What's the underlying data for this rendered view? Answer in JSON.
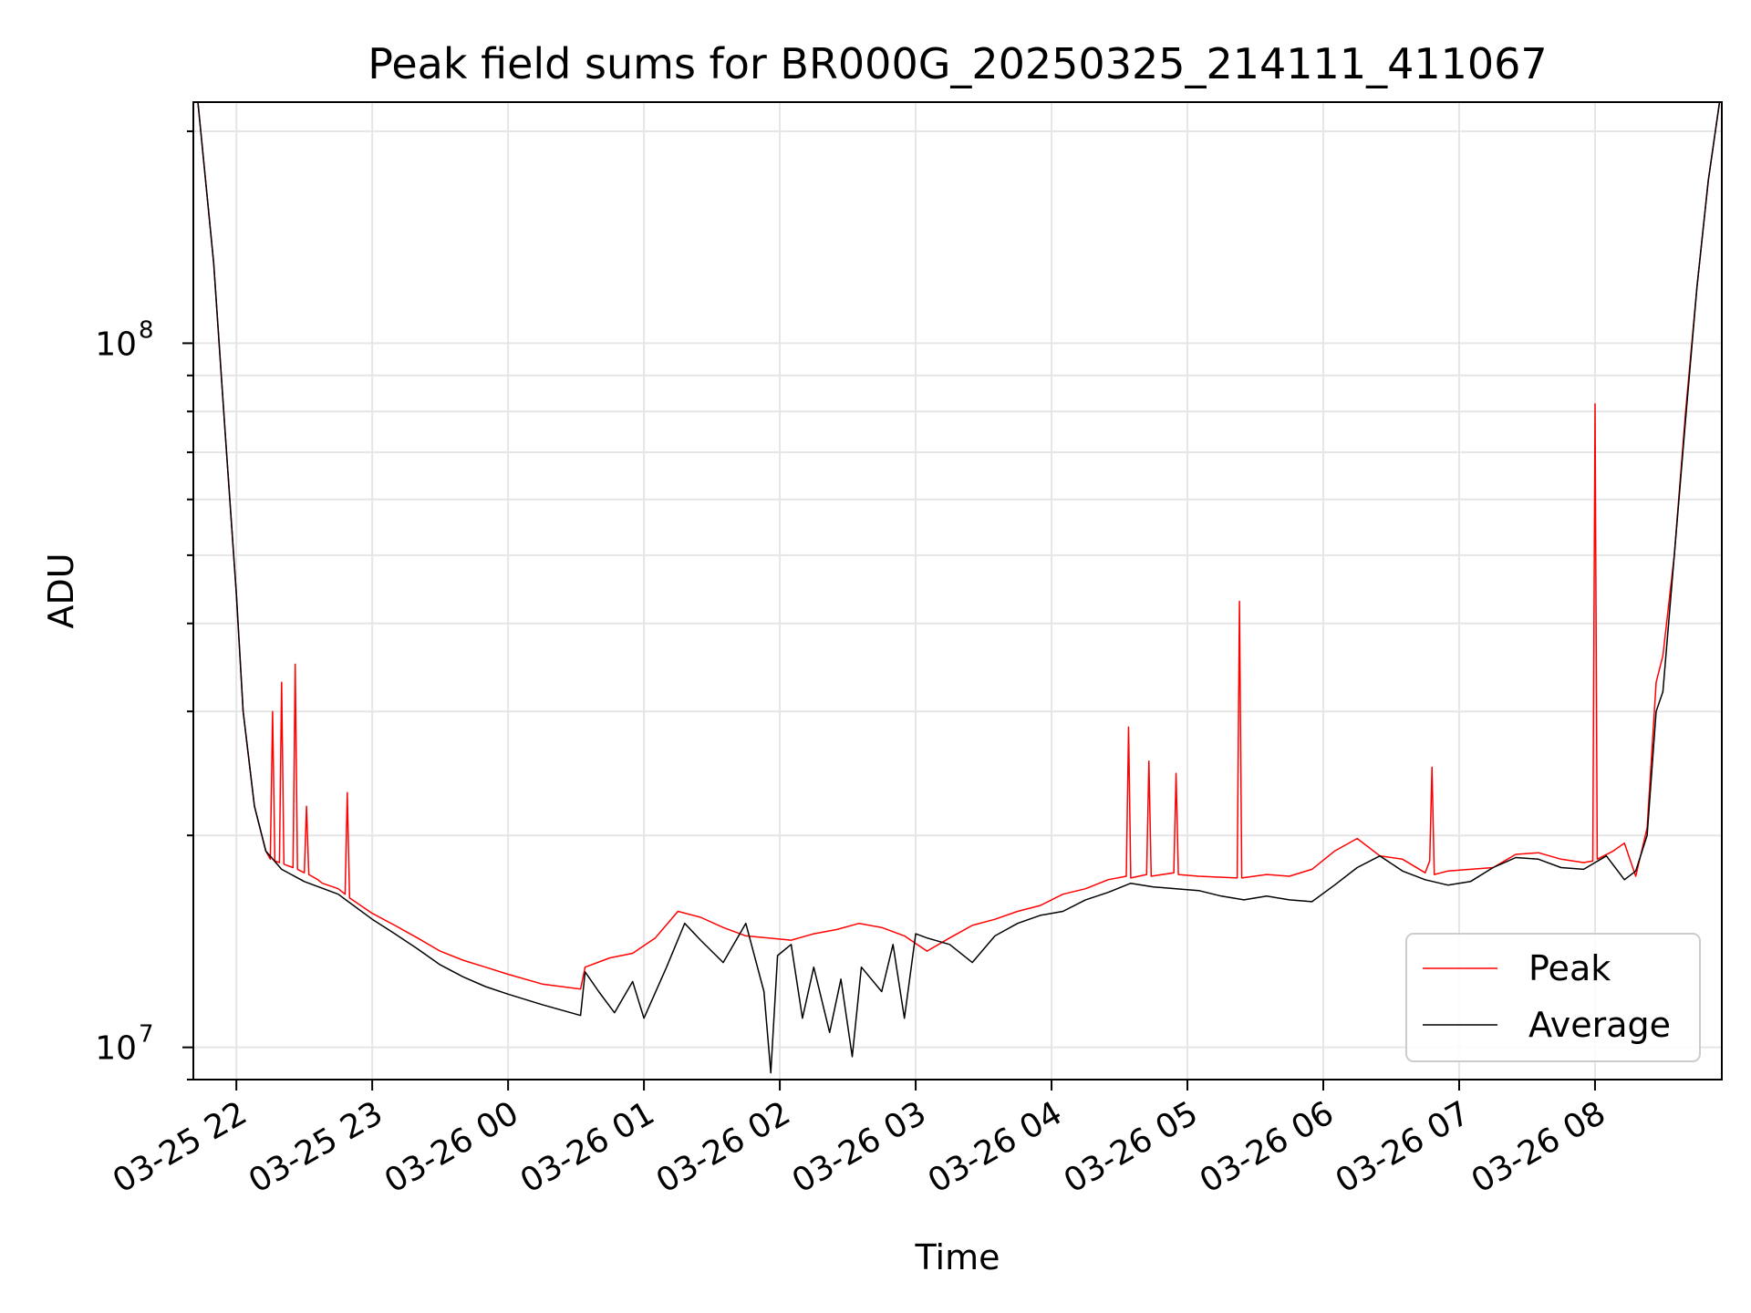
{
  "chart_data": {
    "type": "line",
    "title": "Peak field sums for BR000G_20250325_214111_411067",
    "xlabel": "Time",
    "ylabel": "ADU",
    "yscale": "log",
    "ylim": [
      9000000,
      220000000
    ],
    "xlim": [
      "2025-03-25 21:41",
      "2025-03-26 08:56"
    ],
    "grid": true,
    "legend_position": "lower-right",
    "x_ticks": [
      {
        "value": "2025-03-25 22:00",
        "label": "03-25 22"
      },
      {
        "value": "2025-03-25 23:00",
        "label": "03-25 23"
      },
      {
        "value": "2025-03-26 00:00",
        "label": "03-26 00"
      },
      {
        "value": "2025-03-26 01:00",
        "label": "03-26 01"
      },
      {
        "value": "2025-03-26 02:00",
        "label": "03-26 02"
      },
      {
        "value": "2025-03-26 03:00",
        "label": "03-26 03"
      },
      {
        "value": "2025-03-26 04:00",
        "label": "03-26 04"
      },
      {
        "value": "2025-03-26 05:00",
        "label": "03-26 05"
      },
      {
        "value": "2025-03-26 06:00",
        "label": "03-26 06"
      },
      {
        "value": "2025-03-26 07:00",
        "label": "03-26 07"
      },
      {
        "value": "2025-03-26 08:00",
        "label": "03-26 08"
      }
    ],
    "y_ticks": [
      {
        "value": 10000000,
        "base": "10",
        "exp": "7"
      },
      {
        "value": 100000000,
        "base": "10",
        "exp": "8"
      }
    ],
    "series": [
      {
        "name": "Peak",
        "color": "#ff0000",
        "x": [
          "2025-03-25 21:43",
          "2025-03-25 21:50",
          "2025-03-25 21:55",
          "2025-03-25 22:00",
          "2025-03-25 22:03",
          "2025-03-25 22:08",
          "2025-03-25 22:13",
          "2025-03-25 22:15",
          "2025-03-25 22:16",
          "2025-03-25 22:17",
          "2025-03-25 22:19",
          "2025-03-25 22:20",
          "2025-03-25 22:21",
          "2025-03-25 22:25",
          "2025-03-25 22:26",
          "2025-03-25 22:27",
          "2025-03-25 22:30",
          "2025-03-25 22:31",
          "2025-03-25 22:32",
          "2025-03-25 22:36",
          "2025-03-25 22:37",
          "2025-03-25 22:38",
          "2025-03-25 22:45",
          "2025-03-25 22:48",
          "2025-03-25 22:49",
          "2025-03-25 22:50",
          "2025-03-25 23:00",
          "2025-03-25 23:10",
          "2025-03-25 23:20",
          "2025-03-25 23:30",
          "2025-03-25 23:40",
          "2025-03-25 23:50",
          "2025-03-26 00:00",
          "2025-03-26 00:15",
          "2025-03-26 00:32",
          "2025-03-26 00:34",
          "2025-03-26 00:45",
          "2025-03-26 00:55",
          "2025-03-26 01:05",
          "2025-03-26 01:15",
          "2025-03-26 01:25",
          "2025-03-26 01:35",
          "2025-03-26 01:45",
          "2025-03-26 01:55",
          "2025-03-26 02:05",
          "2025-03-26 02:15",
          "2025-03-26 02:25",
          "2025-03-26 02:35",
          "2025-03-26 02:45",
          "2025-03-26 02:55",
          "2025-03-26 03:05",
          "2025-03-26 03:15",
          "2025-03-26 03:25",
          "2025-03-26 03:35",
          "2025-03-26 03:45",
          "2025-03-26 03:55",
          "2025-03-26 04:05",
          "2025-03-26 04:15",
          "2025-03-26 04:25",
          "2025-03-26 04:33",
          "2025-03-26 04:34",
          "2025-03-26 04:35",
          "2025-03-26 04:42",
          "2025-03-26 04:43",
          "2025-03-26 04:44",
          "2025-03-26 04:54",
          "2025-03-26 04:55",
          "2025-03-26 04:56",
          "2025-03-26 05:05",
          "2025-03-26 05:22",
          "2025-03-26 05:23",
          "2025-03-26 05:24",
          "2025-03-26 05:35",
          "2025-03-26 05:45",
          "2025-03-26 05:55",
          "2025-03-26 06:05",
          "2025-03-26 06:15",
          "2025-03-26 06:25",
          "2025-03-26 06:35",
          "2025-03-26 06:45",
          "2025-03-26 06:47",
          "2025-03-26 06:48",
          "2025-03-26 06:49",
          "2025-03-26 06:55",
          "2025-03-26 07:05",
          "2025-03-26 07:15",
          "2025-03-26 07:25",
          "2025-03-26 07:35",
          "2025-03-26 07:45",
          "2025-03-26 07:55",
          "2025-03-26 07:59",
          "2025-03-26 08:00",
          "2025-03-26 08:01",
          "2025-03-26 08:08",
          "2025-03-26 08:13",
          "2025-03-26 08:18",
          "2025-03-26 08:23",
          "2025-03-26 08:27",
          "2025-03-26 08:30",
          "2025-03-26 08:35",
          "2025-03-26 08:40",
          "2025-03-26 08:45",
          "2025-03-26 08:50",
          "2025-03-26 08:55"
        ],
        "y": [
          220000000,
          130000000,
          75000000,
          44000000,
          30000000,
          22000000,
          19000000,
          18500000,
          30000000,
          18400000,
          18300000,
          33000000,
          18200000,
          18000000,
          35000000,
          17900000,
          17700000,
          22000000,
          17600000,
          17300000,
          17200000,
          17100000,
          16800000,
          16500000,
          23000000,
          16300000,
          15500000,
          14900000,
          14300000,
          13700000,
          13300000,
          13000000,
          12700000,
          12300000,
          12100000,
          13000000,
          13400000,
          13600000,
          14300000,
          15600000,
          15300000,
          14800000,
          14400000,
          14300000,
          14200000,
          14500000,
          14700000,
          15000000,
          14800000,
          14400000,
          13700000,
          14300000,
          14900000,
          15200000,
          15600000,
          15900000,
          16500000,
          16800000,
          17300000,
          17500000,
          28500000,
          17400000,
          17600000,
          25500000,
          17500000,
          17700000,
          24500000,
          17600000,
          17500000,
          17400000,
          43000000,
          17400000,
          17600000,
          17500000,
          17900000,
          19000000,
          19800000,
          18700000,
          18500000,
          17700000,
          18400000,
          25000000,
          17600000,
          17800000,
          17900000,
          18000000,
          18800000,
          18900000,
          18500000,
          18300000,
          18400000,
          82000000,
          18500000,
          19000000,
          19500000,
          17500000,
          20500000,
          33000000,
          36000000,
          50000000,
          80000000,
          120000000,
          170000000,
          220000000
        ]
      },
      {
        "name": "Average",
        "color": "#000000",
        "x": [
          "2025-03-25 21:43",
          "2025-03-25 21:50",
          "2025-03-25 21:55",
          "2025-03-25 22:00",
          "2025-03-25 22:03",
          "2025-03-25 22:08",
          "2025-03-25 22:13",
          "2025-03-25 22:20",
          "2025-03-25 22:30",
          "2025-03-25 22:45",
          "2025-03-25 23:00",
          "2025-03-25 23:10",
          "2025-03-25 23:20",
          "2025-03-25 23:30",
          "2025-03-25 23:40",
          "2025-03-25 23:50",
          "2025-03-26 00:00",
          "2025-03-26 00:15",
          "2025-03-26 00:32",
          "2025-03-26 00:34",
          "2025-03-26 00:40",
          "2025-03-26 00:47",
          "2025-03-26 00:55",
          "2025-03-26 01:00",
          "2025-03-26 01:10",
          "2025-03-26 01:18",
          "2025-03-26 01:25",
          "2025-03-26 01:35",
          "2025-03-26 01:45",
          "2025-03-26 01:53",
          "2025-03-26 01:56",
          "2025-03-26 01:59",
          "2025-03-26 02:05",
          "2025-03-26 02:10",
          "2025-03-26 02:15",
          "2025-03-26 02:22",
          "2025-03-26 02:27",
          "2025-03-26 02:32",
          "2025-03-26 02:36",
          "2025-03-26 02:45",
          "2025-03-26 02:50",
          "2025-03-26 02:55",
          "2025-03-26 03:00",
          "2025-03-26 03:05",
          "2025-03-26 03:15",
          "2025-03-26 03:25",
          "2025-03-26 03:35",
          "2025-03-26 03:45",
          "2025-03-26 03:55",
          "2025-03-26 04:05",
          "2025-03-26 04:15",
          "2025-03-26 04:25",
          "2025-03-26 04:35",
          "2025-03-26 04:45",
          "2025-03-26 04:55",
          "2025-03-26 05:05",
          "2025-03-26 05:15",
          "2025-03-26 05:25",
          "2025-03-26 05:35",
          "2025-03-26 05:45",
          "2025-03-26 05:55",
          "2025-03-26 06:05",
          "2025-03-26 06:15",
          "2025-03-26 06:25",
          "2025-03-26 06:35",
          "2025-03-26 06:45",
          "2025-03-26 06:55",
          "2025-03-26 07:05",
          "2025-03-26 07:15",
          "2025-03-26 07:25",
          "2025-03-26 07:35",
          "2025-03-26 07:45",
          "2025-03-26 07:55",
          "2025-03-26 08:05",
          "2025-03-26 08:13",
          "2025-03-26 08:18",
          "2025-03-26 08:23",
          "2025-03-26 08:27",
          "2025-03-26 08:30",
          "2025-03-26 08:35",
          "2025-03-26 08:40",
          "2025-03-26 08:45",
          "2025-03-26 08:50",
          "2025-03-26 08:55"
        ],
        "y": [
          220000000,
          130000000,
          75000000,
          44000000,
          30000000,
          22000000,
          19000000,
          17900000,
          17200000,
          16500000,
          15200000,
          14500000,
          13800000,
          13100000,
          12600000,
          12200000,
          11900000,
          11500000,
          11100000,
          12800000,
          12000000,
          11200000,
          12400000,
          11000000,
          13000000,
          15000000,
          14200000,
          13200000,
          15000000,
          12000000,
          9200000,
          13500000,
          14000000,
          11000000,
          13000000,
          10500000,
          12500000,
          9700000,
          13000000,
          12000000,
          14000000,
          11000000,
          14500000,
          14300000,
          14000000,
          13200000,
          14400000,
          15000000,
          15400000,
          15600000,
          16200000,
          16600000,
          17100000,
          16900000,
          16800000,
          16700000,
          16400000,
          16200000,
          16400000,
          16200000,
          16100000,
          17000000,
          18000000,
          18700000,
          17800000,
          17300000,
          17000000,
          17200000,
          18000000,
          18600000,
          18500000,
          18000000,
          17900000,
          18700000,
          17300000,
          17800000,
          20000000,
          30000000,
          32000000,
          50000000,
          78000000,
          120000000,
          170000000,
          220000000
        ]
      }
    ]
  }
}
